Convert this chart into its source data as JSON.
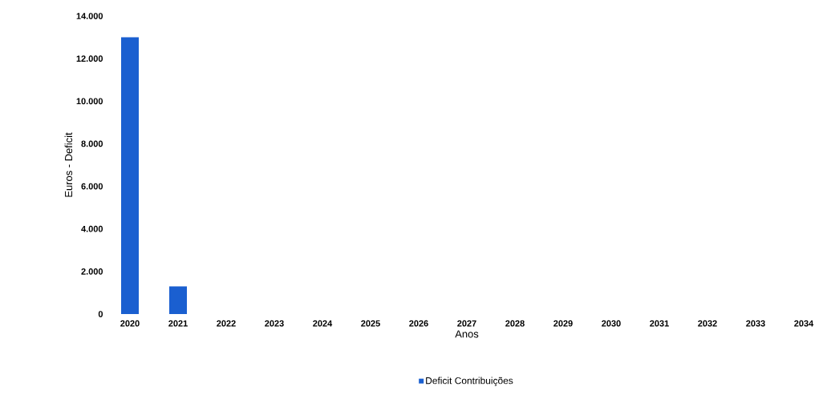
{
  "chart_data": {
    "type": "bar",
    "xlabel": "Anos",
    "ylabel": "Euros - Deficit",
    "categories": [
      "2020",
      "2021",
      "2022",
      "2023",
      "2024",
      "2025",
      "2026",
      "2027",
      "2028",
      "2029",
      "2030",
      "2031",
      "2032",
      "2033",
      "2034"
    ],
    "series": [
      {
        "name": "Deficit Contribuições",
        "color": "#1a5fd0",
        "values": [
          13000,
          1300,
          0,
          0,
          0,
          0,
          0,
          0,
          0,
          0,
          0,
          0,
          0,
          0,
          0
        ]
      }
    ],
    "ylim": [
      0,
      14000
    ],
    "yticks": [
      {
        "value": 0,
        "label": "0"
      },
      {
        "value": 2000,
        "label": "2.000"
      },
      {
        "value": 4000,
        "label": "4.000"
      },
      {
        "value": 6000,
        "label": "6.000"
      },
      {
        "value": 8000,
        "label": "8.000"
      },
      {
        "value": 10000,
        "label": "10.000"
      },
      {
        "value": 12000,
        "label": "12.000"
      },
      {
        "value": 14000,
        "label": "14.000"
      }
    ],
    "grid": false,
    "legend": "bottom"
  }
}
